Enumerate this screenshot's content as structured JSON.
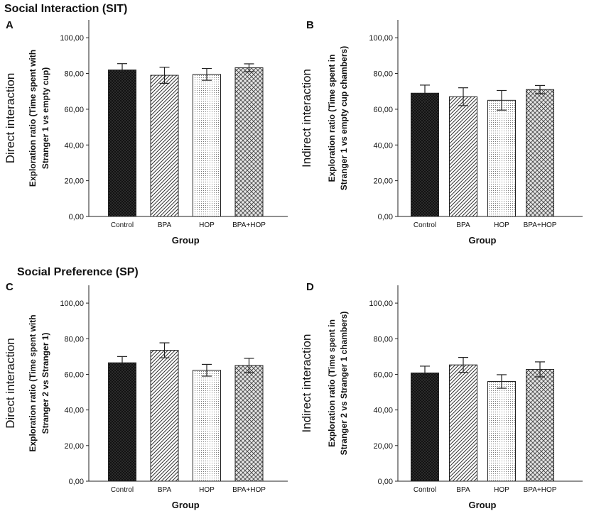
{
  "sections": [
    {
      "title": "Social Interaction (SIT)"
    },
    {
      "title": "Social Preference (SP)"
    }
  ],
  "chart_data": [
    {
      "panel": "A",
      "type": "bar",
      "outer_label": "Direct interaction",
      "ylabel_lines": [
        "Exploration ratio (Time spent with",
        "Stranger 1 vs empty cup)"
      ],
      "xlabel": "Group",
      "categories": [
        "Control",
        "BPA",
        "HOP",
        "BPA+HOP"
      ],
      "values": [
        82,
        79,
        79.5,
        83.2
      ],
      "errors": [
        3.5,
        4.5,
        3.3,
        2.2
      ],
      "ylim": [
        0,
        110
      ],
      "yticks": [
        0,
        20,
        40,
        60,
        80,
        100
      ],
      "ytick_labels": [
        "0,00",
        "20,00",
        "40,00",
        "60,00",
        "80,00",
        "100,00"
      ]
    },
    {
      "panel": "B",
      "type": "bar",
      "outer_label": "Indirect interaction",
      "ylabel_lines": [
        "Exploration ratio (Time spent in",
        "Stranger 1 vs empty cup chambers)"
      ],
      "xlabel": "Group",
      "categories": [
        "Control",
        "BPA",
        "HOP",
        "BPA+HOP"
      ],
      "values": [
        69,
        67,
        65,
        71
      ],
      "errors": [
        4.5,
        5,
        5.5,
        2.3
      ],
      "ylim": [
        0,
        110
      ],
      "yticks": [
        0,
        20,
        40,
        60,
        80,
        100
      ],
      "ytick_labels": [
        "0,00",
        "20,00",
        "40,00",
        "60,00",
        "80,00",
        "100,00"
      ]
    },
    {
      "panel": "C",
      "type": "bar",
      "outer_label": "Direct interaction",
      "ylabel_lines": [
        "Exploration ratio (Time spent with",
        "Stranger 2 vs Stranger 1)"
      ],
      "xlabel": "Group",
      "categories": [
        "Control",
        "BPA",
        "HOP",
        "BPA+HOP"
      ],
      "values": [
        66.5,
        73.5,
        62.3,
        65
      ],
      "errors": [
        3.5,
        4.2,
        3.3,
        4
      ],
      "ylim": [
        0,
        110
      ],
      "yticks": [
        0,
        20,
        40,
        60,
        80,
        100
      ],
      "ytick_labels": [
        "0,00",
        "20,00",
        "40,00",
        "60,00",
        "80,00",
        "100,00"
      ]
    },
    {
      "panel": "D",
      "type": "bar",
      "outer_label": "Indirect interaction",
      "ylabel_lines": [
        "Exploration ratio (Time spent in",
        "Stranger 2 vs Stranger 1 chambers)"
      ],
      "xlabel": "Group",
      "categories": [
        "Control",
        "BPA",
        "HOP",
        "BPA+HOP"
      ],
      "values": [
        60.8,
        65.3,
        56,
        62.8
      ],
      "errors": [
        3.8,
        4.2,
        3.8,
        4.2
      ],
      "ylim": [
        0,
        110
      ],
      "yticks": [
        0,
        20,
        40,
        60,
        80,
        100
      ],
      "ytick_labels": [
        "0,00",
        "20,00",
        "40,00",
        "60,00",
        "80,00",
        "100,00"
      ]
    }
  ]
}
